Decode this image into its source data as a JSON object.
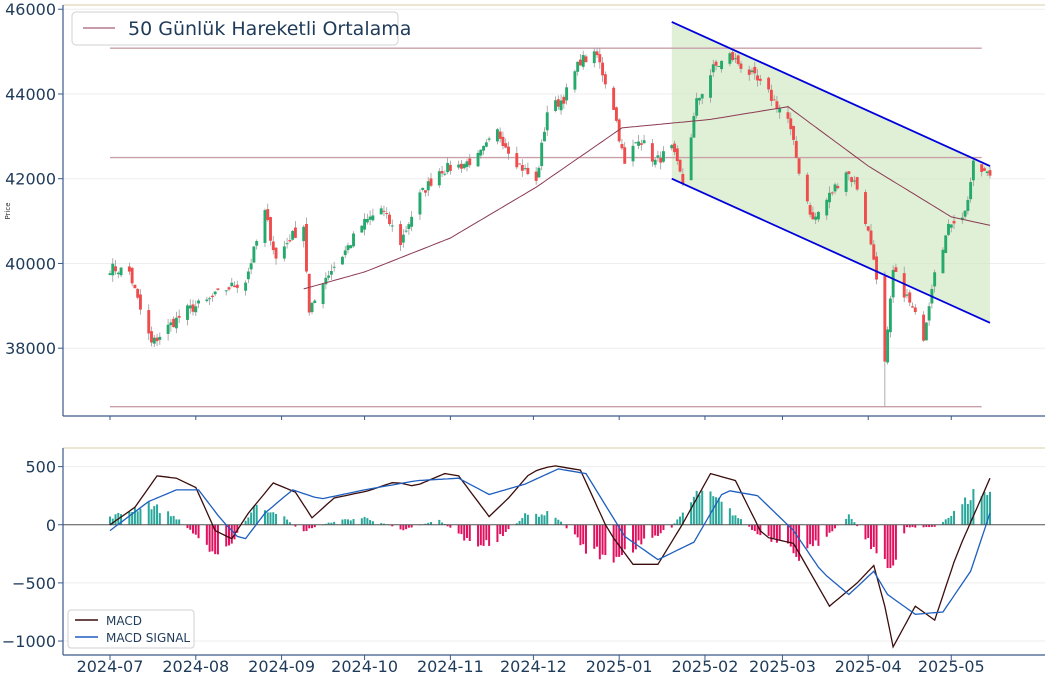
{
  "chart_data": [
    {
      "type": "candlestick",
      "ylabel": "Price",
      "ylim": [
        36400,
        46100
      ],
      "yticks": [
        38000,
        40000,
        42000,
        44000,
        46000
      ],
      "ytick_labels": [
        "38000",
        "40000",
        "42000",
        "44000",
        "46000"
      ],
      "legend": {
        "position": "top-left",
        "entries": [
          "50 Günlük Hareketli Ortalama"
        ]
      },
      "colors": {
        "up": "#26a96c",
        "down": "#ef4d4d",
        "ma": "#8b3a52",
        "channel_line": "#0000dd",
        "channel_fill": "#cfe8c0",
        "hlines": "#c9a0a8",
        "axis": "#3a5a8a"
      },
      "horizontal_levels": [
        45080,
        42500,
        36620
      ],
      "channel": {
        "upper": [
          [
            "2025-01-20",
            45700
          ],
          [
            "2025-05-15",
            42300
          ]
        ],
        "lower": [
          [
            "2025-01-20",
            42000
          ],
          [
            "2025-05-15",
            38600
          ]
        ]
      },
      "close_anchors": [
        [
          "2024-07-01",
          39900
        ],
        [
          "2024-07-08",
          39800
        ],
        [
          "2024-07-12",
          38900
        ],
        [
          "2024-07-16",
          38100
        ],
        [
          "2024-07-22",
          38500
        ],
        [
          "2024-07-29",
          38900
        ],
        [
          "2024-08-05",
          39100
        ],
        [
          "2024-08-12",
          39400
        ],
        [
          "2024-08-19",
          39600
        ],
        [
          "2024-08-26",
          41200
        ],
        [
          "2024-08-30",
          40100
        ],
        [
          "2024-09-04",
          40600
        ],
        [
          "2024-09-09",
          40900
        ],
        [
          "2024-09-11",
          38800
        ],
        [
          "2024-09-16",
          39600
        ],
        [
          "2024-09-23",
          40200
        ],
        [
          "2024-09-30",
          40900
        ],
        [
          "2024-10-07",
          41300
        ],
        [
          "2024-10-14",
          40500
        ],
        [
          "2024-10-21",
          41600
        ],
        [
          "2024-10-28",
          42200
        ],
        [
          "2024-11-04",
          42300
        ],
        [
          "2024-11-11",
          42500
        ],
        [
          "2024-11-18",
          43100
        ],
        [
          "2024-11-25",
          42400
        ],
        [
          "2024-12-02",
          41900
        ],
        [
          "2024-12-06",
          43600
        ],
        [
          "2024-12-12",
          43900
        ],
        [
          "2024-12-18",
          44800
        ],
        [
          "2024-12-24",
          44900
        ],
        [
          "2024-12-30",
          43700
        ],
        [
          "2025-01-03",
          42300
        ],
        [
          "2025-01-08",
          43000
        ],
        [
          "2025-01-14",
          42400
        ],
        [
          "2025-01-20",
          42700
        ],
        [
          "2025-01-24",
          41900
        ],
        [
          "2025-01-29",
          43800
        ],
        [
          "2025-02-04",
          44600
        ],
        [
          "2025-02-10",
          44900
        ],
        [
          "2025-02-17",
          44500
        ],
        [
          "2025-02-24",
          44000
        ],
        [
          "2025-03-03",
          43400
        ],
        [
          "2025-03-07",
          42200
        ],
        [
          "2025-03-12",
          41000
        ],
        [
          "2025-03-18",
          41600
        ],
        [
          "2025-03-24",
          42200
        ],
        [
          "2025-03-28",
          41800
        ],
        [
          "2025-04-03",
          40200
        ],
        [
          "2025-04-07",
          37600
        ],
        [
          "2025-04-10",
          39800
        ],
        [
          "2025-04-15",
          39200
        ],
        [
          "2025-04-21",
          38300
        ],
        [
          "2025-04-25",
          39900
        ],
        [
          "2025-05-01",
          41000
        ],
        [
          "2025-05-06",
          41200
        ],
        [
          "2025-05-09",
          42300
        ],
        [
          "2025-05-14",
          42100
        ]
      ],
      "ma_anchors": [
        [
          "2024-09-09",
          39400
        ],
        [
          "2024-10-01",
          39800
        ],
        [
          "2024-11-01",
          40600
        ],
        [
          "2024-12-02",
          41800
        ],
        [
          "2025-01-02",
          43200
        ],
        [
          "2025-02-03",
          43400
        ],
        [
          "2025-03-03",
          43700
        ],
        [
          "2025-04-01",
          42300
        ],
        [
          "2025-05-01",
          41100
        ],
        [
          "2025-05-15",
          40900
        ]
      ]
    },
    {
      "type": "line+bar",
      "ylim": [
        -1120,
        660
      ],
      "yticks": [
        -1000,
        -500,
        0,
        500
      ],
      "ytick_labels": [
        "−1000",
        "−500",
        "0",
        "500"
      ],
      "legend": {
        "position": "bottom-left",
        "entries": [
          "MACD",
          "MACD SIGNAL"
        ]
      },
      "x_tick_labels": [
        "2024-07",
        "2024-08",
        "2024-09",
        "2024-10",
        "2024-11",
        "2024-12",
        "2025-01",
        "2025-02",
        "2025-03",
        "2025-04",
        "2025-05"
      ],
      "colors": {
        "macd": "#3b0d0d",
        "signal": "#1f5fbf",
        "hist_pos": "#2aa79b",
        "hist_neg": "#e0115f"
      },
      "series": [
        {
          "name": "MACD",
          "points": [
            [
              "2024-07-01",
              0
            ],
            [
              "2024-07-10",
              150
            ],
            [
              "2024-07-18",
              420
            ],
            [
              "2024-07-25",
              400
            ],
            [
              "2024-08-01",
              320
            ],
            [
              "2024-08-08",
              -50
            ],
            [
              "2024-08-14",
              -120
            ],
            [
              "2024-08-20",
              100
            ],
            [
              "2024-08-29",
              360
            ],
            [
              "2024-09-06",
              280
            ],
            [
              "2024-09-12",
              60
            ],
            [
              "2024-09-20",
              230
            ],
            [
              "2024-10-02",
              290
            ],
            [
              "2024-10-12",
              370
            ],
            [
              "2024-10-19",
              330
            ],
            [
              "2024-10-30",
              440
            ],
            [
              "2024-11-04",
              420
            ],
            [
              "2024-11-15",
              70
            ],
            [
              "2024-11-22",
              230
            ],
            [
              "2024-11-30",
              450
            ],
            [
              "2024-12-08",
              510
            ],
            [
              "2024-12-18",
              470
            ],
            [
              "2024-12-28",
              -50
            ],
            [
              "2025-01-06",
              -340
            ],
            [
              "2025-01-15",
              -340
            ],
            [
              "2025-01-24",
              10
            ],
            [
              "2025-02-03",
              440
            ],
            [
              "2025-02-12",
              380
            ],
            [
              "2025-02-22",
              -100
            ],
            [
              "2025-03-05",
              -160
            ],
            [
              "2025-03-18",
              -700
            ],
            [
              "2025-03-28",
              -500
            ],
            [
              "2025-04-03",
              -350
            ],
            [
              "2025-04-07",
              -700
            ],
            [
              "2025-04-10",
              -1050
            ],
            [
              "2025-04-18",
              -700
            ],
            [
              "2025-04-25",
              -820
            ],
            [
              "2025-05-03",
              -250
            ],
            [
              "2025-05-15",
              400
            ]
          ]
        },
        {
          "name": "MACD SIGNAL",
          "points": [
            [
              "2024-07-01",
              -50
            ],
            [
              "2024-07-15",
              200
            ],
            [
              "2024-07-25",
              300
            ],
            [
              "2024-08-02",
              300
            ],
            [
              "2024-08-10",
              50
            ],
            [
              "2024-08-18",
              -150
            ],
            [
              "2024-08-26",
              100
            ],
            [
              "2024-09-05",
              300
            ],
            [
              "2024-09-15",
              220
            ],
            [
              "2024-10-01",
              300
            ],
            [
              "2024-10-20",
              380
            ],
            [
              "2024-11-04",
              400
            ],
            [
              "2024-11-15",
              260
            ],
            [
              "2024-11-28",
              350
            ],
            [
              "2024-12-10",
              480
            ],
            [
              "2024-12-20",
              440
            ],
            [
              "2025-01-03",
              -100
            ],
            [
              "2025-01-15",
              -300
            ],
            [
              "2025-01-28",
              -150
            ],
            [
              "2025-02-08",
              300
            ],
            [
              "2025-02-20",
              250
            ],
            [
              "2025-03-05",
              -50
            ],
            [
              "2025-03-15",
              -400
            ],
            [
              "2025-03-25",
              -600
            ],
            [
              "2025-04-03",
              -400
            ],
            [
              "2025-04-08",
              -600
            ],
            [
              "2025-04-18",
              -770
            ],
            [
              "2025-04-28",
              -750
            ],
            [
              "2025-05-08",
              -400
            ],
            [
              "2025-05-15",
              100
            ]
          ]
        }
      ],
      "histogram_anchors": [
        [
          "2024-07-01",
          60
        ],
        [
          "2024-07-15",
          180
        ],
        [
          "2024-07-25",
          60
        ],
        [
          "2024-08-05",
          -180
        ],
        [
          "2024-08-12",
          -240
        ],
        [
          "2024-08-22",
          150
        ],
        [
          "2024-08-30",
          120
        ],
        [
          "2024-09-08",
          -60
        ],
        [
          "2024-09-20",
          30
        ],
        [
          "2024-10-01",
          60
        ],
        [
          "2024-10-15",
          -40
        ],
        [
          "2024-10-28",
          40
        ],
        [
          "2024-11-08",
          -150
        ],
        [
          "2024-11-16",
          -170
        ],
        [
          "2024-11-28",
          80
        ],
        [
          "2024-12-08",
          100
        ],
        [
          "2024-12-20",
          -200
        ],
        [
          "2024-12-28",
          -290
        ],
        [
          "2025-01-08",
          -180
        ],
        [
          "2025-01-20",
          -20
        ],
        [
          "2025-01-30",
          280
        ],
        [
          "2025-02-06",
          200
        ],
        [
          "2025-02-20",
          -80
        ],
        [
          "2025-03-01",
          -180
        ],
        [
          "2025-03-08",
          -280
        ],
        [
          "2025-03-15",
          -130
        ],
        [
          "2025-03-25",
          80
        ],
        [
          "2025-04-03",
          -200
        ],
        [
          "2025-04-08",
          -430
        ],
        [
          "2025-04-15",
          -20
        ],
        [
          "2025-04-25",
          -20
        ],
        [
          "2025-05-01",
          80
        ],
        [
          "2025-05-10",
          290
        ],
        [
          "2025-05-15",
          260
        ]
      ]
    }
  ]
}
